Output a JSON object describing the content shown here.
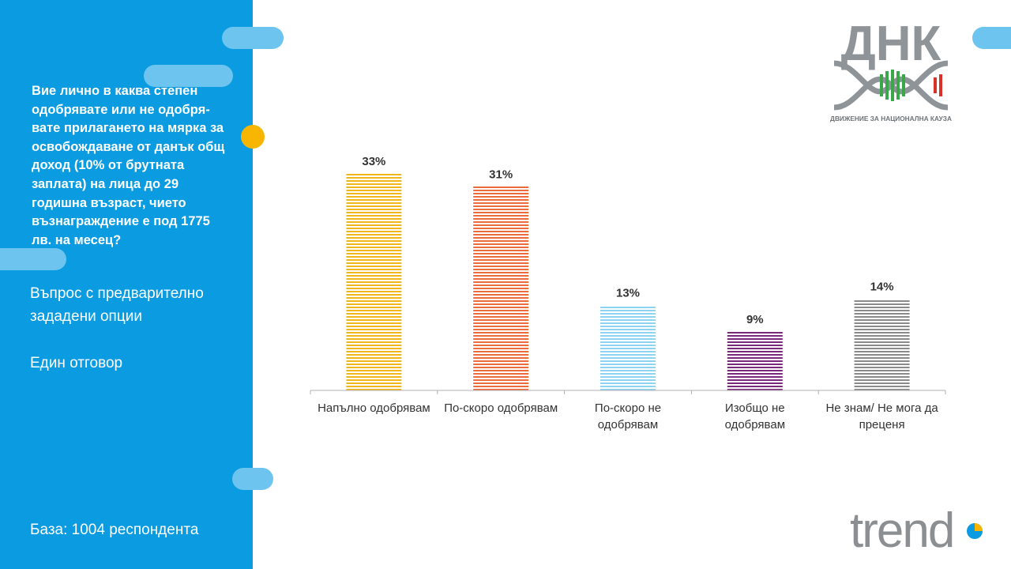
{
  "sidebar": {
    "question": "Вие лично в каква степен одобрявате или не одобря-вате прилагането на мярка за освобождаване от данък общ доход (10% от брутната заплата) на лица до 29 годишна възраст, чието възнаграждение е под 1775 лв. на месец?",
    "note1": "Въпрос с предварително зададени опции",
    "note2": "Един отговор",
    "base": "База:  1004 респондента"
  },
  "logos": {
    "dnk_text": "ДНК",
    "dnk_tagline": "ДВИЖЕНИЕ ЗА НАЦИОНАЛНА КАУЗА",
    "trend_text": "trend"
  },
  "colors": {
    "sidebar": "#0a9be0",
    "pill": "#6cc4ef",
    "accent_dot": "#f7b500"
  },
  "chart_data": {
    "type": "bar",
    "categories": [
      "Напълно одобрявам",
      "По-скоро одобрявам",
      "По-скоро не одобрявам",
      "Изобщо не одобрявам",
      "Не знам/ Не мога да преценя"
    ],
    "category_lines": [
      [
        "Напълно одобрявам"
      ],
      [
        "По-скоро одобрявам"
      ],
      [
        "По-скоро не",
        "одобрявам"
      ],
      [
        "Изобщо не",
        "одобрявам"
      ],
      [
        "Не знам/ Не мога да",
        "преценя"
      ]
    ],
    "values": [
      33,
      31,
      13,
      9,
      14
    ],
    "value_labels": [
      "33%",
      "31%",
      "13%",
      "9%",
      "14%"
    ],
    "colors": [
      "#f2b61d",
      "#ec6b3b",
      "#8dd3f2",
      "#7a2a7a",
      "#8a8a8a"
    ],
    "ylim": [
      0,
      36
    ],
    "grid": false,
    "legend": "none"
  }
}
